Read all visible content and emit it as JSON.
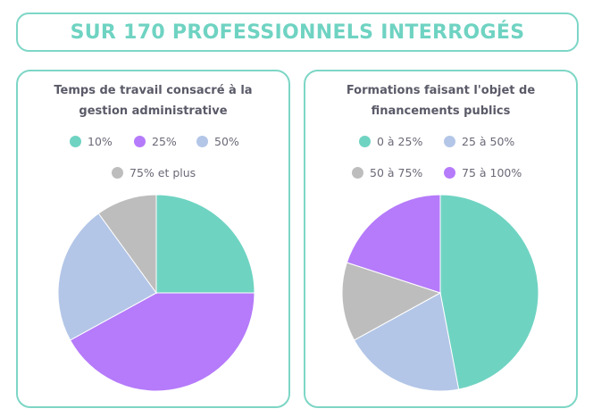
{
  "header": {
    "title": "SUR 170 PROFESSIONNELS INTERROGÉS"
  },
  "chart_data": [
    {
      "type": "pie",
      "title_lines": [
        "Temps de travail consacré à la",
        "gestion administrative"
      ],
      "legend_placement": "top",
      "legend": [
        "10%",
        "25%",
        "50%",
        "75% et plus"
      ],
      "slices": [
        {
          "label": "10%",
          "value": 25,
          "color": "#6fd3c2"
        },
        {
          "label": "25%",
          "value": 42,
          "color": "#b57bfa"
        },
        {
          "label": "50%",
          "value": 23,
          "color": "#b3c6e7"
        },
        {
          "label": "75% et plus",
          "value": 10,
          "color": "#bdbdbd"
        }
      ]
    },
    {
      "type": "pie",
      "title_lines": [
        "Formations faisant l'objet de",
        "financements publics"
      ],
      "legend_placement": "top",
      "legend": [
        "0 à 25%",
        "25 à 50%",
        "50 à 75%",
        "75 à 100%"
      ],
      "slices": [
        {
          "label": "0 à 25%",
          "value": 47,
          "color": "#6fd3c2"
        },
        {
          "label": "25 à 50%",
          "value": 20,
          "color": "#b3c6e7"
        },
        {
          "label": "50 à 75%",
          "value": 13,
          "color": "#bdbdbd"
        },
        {
          "label": "75 à 100%",
          "value": 20,
          "color": "#b57bfa"
        }
      ]
    }
  ]
}
